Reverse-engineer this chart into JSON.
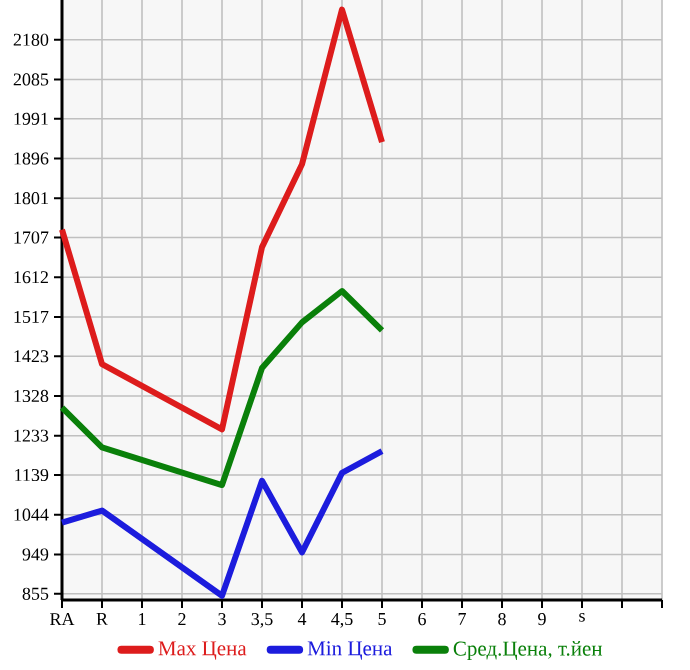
{
  "chart_data": {
    "type": "line",
    "categories": [
      "RA",
      "R",
      "1",
      "2",
      "3",
      "3,5",
      "4",
      "4,5",
      "5",
      "6",
      "7",
      "8",
      "9",
      "s",
      null
    ],
    "ylim": [
      840,
      2275
    ],
    "yticks": [
      855,
      949,
      1044,
      1139,
      1233,
      1328,
      1423,
      1517,
      1612,
      1707,
      1801,
      1896,
      1991,
      2085,
      2180
    ],
    "grid": true,
    "legend": "bottom",
    "marker": "none",
    "line_style": "solid",
    "series": [
      {
        "name": "Max Цена",
        "color": "#dd1c1c",
        "values": [
          1726,
          1404,
          null,
          null,
          1248,
          1684,
          1882,
          2252,
          1935,
          null,
          null,
          null,
          null,
          null,
          null
        ]
      },
      {
        "name": "Min Цена",
        "color": "#1c1cdd",
        "values": [
          1025,
          1054,
          null,
          null,
          850,
          1125,
          954,
          1144,
          1196,
          null,
          null,
          null,
          null,
          null,
          null
        ]
      },
      {
        "name": "Сред.Цена, т.йен",
        "color": "#0a800a",
        "values": [
          1300,
          1205,
          null,
          null,
          1115,
          1395,
          1504,
          1579,
          1485,
          null,
          null,
          null,
          null,
          null,
          null
        ]
      }
    ]
  }
}
